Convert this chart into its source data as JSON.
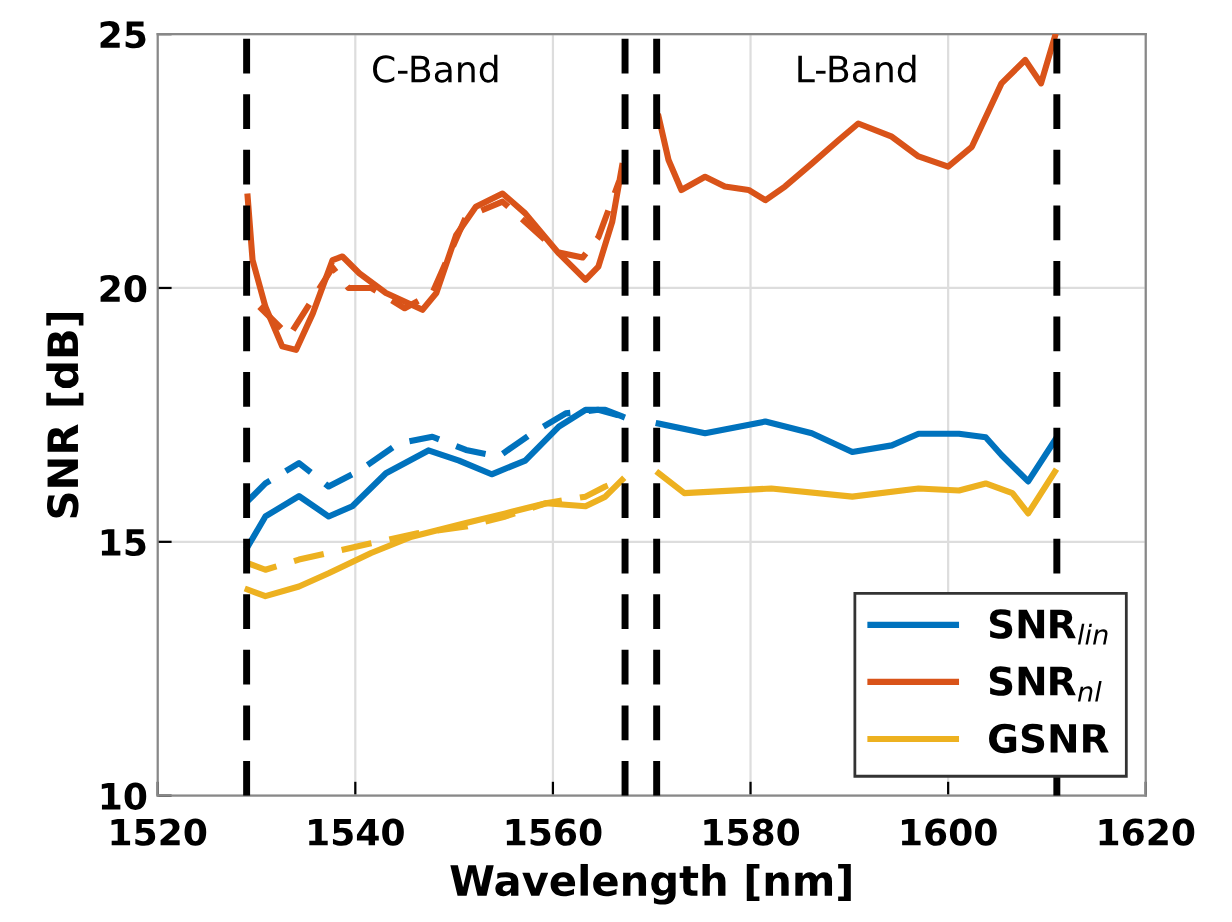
{
  "chart_data": {
    "type": "line",
    "xlabel": "Wavelength [nm]",
    "ylabel": "SNR [dB]",
    "xlim": [
      1520,
      1620
    ],
    "xticks": [
      1520,
      1540,
      1560,
      1580,
      1600,
      1620
    ],
    "ylim": [
      10,
      25
    ],
    "yticks": [
      10,
      15,
      20,
      25
    ],
    "grid": true,
    "legend": "bottom right",
    "series": [
      {
        "name": "SNR$_{lin}$",
        "color": "#0072bd",
        "line_style": "solid",
        "x": [
          1529.1,
          1530.9,
          1534.3,
          1537.3,
          1539.7,
          1543.1,
          1547.4,
          1550.5,
          1553.8,
          1557.2,
          1560.6,
          1563.3,
          1565.3,
          1567.0,
          null,
          1570.7,
          1575.4,
          1581.5,
          1586.2,
          1590.3,
          1594.3,
          1597.0,
          1601.1,
          1603.8,
          1605.4,
          1608.1,
          1610.8
        ],
        "values": [
          14.9,
          15.5,
          15.9,
          15.5,
          15.7,
          16.35,
          16.8,
          16.6,
          16.33,
          16.6,
          17.27,
          17.6,
          17.6,
          17.47,
          null,
          17.33,
          17.14,
          17.37,
          17.14,
          16.77,
          16.9,
          17.13,
          17.13,
          17.06,
          16.71,
          16.19,
          17.0
        ]
      },
      {
        "name": "SNR$_{nl}$",
        "color": "#d95319",
        "line_style": "solid",
        "x": [
          1529.1,
          1529.6,
          1530.9,
          1532.6,
          1534.0,
          1535.7,
          1537.7,
          1538.7,
          1540.4,
          1543.1,
          1546.8,
          1548.2,
          1550.2,
          1552.2,
          1554.9,
          1557.2,
          1560.6,
          1563.3,
          1564.6,
          1566.0,
          1567.0,
          null,
          1570.7,
          1571.7,
          1573.0,
          1575.4,
          1577.4,
          1579.8,
          1581.5,
          1583.5,
          1586.2,
          1588.9,
          1590.9,
          1594.3,
          1597.0,
          1600.0,
          1602.4,
          1605.4,
          1607.8,
          1609.4,
          1610.8
        ],
        "values": [
          21.8,
          20.55,
          19.63,
          18.85,
          18.78,
          19.5,
          20.55,
          20.62,
          20.29,
          19.9,
          19.57,
          19.9,
          21.04,
          21.6,
          21.86,
          21.47,
          20.68,
          20.16,
          20.42,
          21.3,
          22.4,
          null,
          23.37,
          22.52,
          21.93,
          22.19,
          22.0,
          21.93,
          21.73,
          22.0,
          22.45,
          22.91,
          23.24,
          22.98,
          22.59,
          22.39,
          22.78,
          24.03,
          24.49,
          24.03,
          24.95
        ]
      },
      {
        "name": "GSNR",
        "color": "#edb120",
        "line_style": "solid",
        "x": [
          1529.1,
          1530.9,
          1534.3,
          1537.3,
          1541.6,
          1545.7,
          1551.2,
          1555.2,
          1559.3,
          1563.3,
          1565.3,
          1567.0,
          null,
          1570.7,
          1573.3,
          1582.1,
          1590.3,
          1597.0,
          1601.1,
          1603.8,
          1606.5,
          1608.1,
          1610.8
        ],
        "values": [
          14.06,
          13.93,
          14.12,
          14.38,
          14.78,
          15.1,
          15.37,
          15.56,
          15.76,
          15.7,
          15.89,
          16.22,
          null,
          16.35,
          15.96,
          16.05,
          15.89,
          16.05,
          16.01,
          16.15,
          15.96,
          15.56,
          16.38
        ]
      },
      {
        "color": "#0072bd",
        "line_style": "dashed",
        "x": [
          1529.1,
          1530.9,
          1534.3,
          1537.3,
          1540.4,
          1544.4,
          1547.8,
          1551.2,
          1554.5,
          1557.9,
          1561.3,
          1564.6,
          1567.0
        ],
        "values": [
          15.8,
          16.15,
          16.55,
          16.09,
          16.4,
          16.94,
          17.07,
          16.81,
          16.68,
          17.14,
          17.53,
          17.6,
          17.47
        ]
      },
      {
        "color": "#d95319",
        "line_style": "dashed",
        "x": [
          1530.3,
          1533.3,
          1537.7,
          1539.3,
          1541.6,
          1545.0,
          1547.8,
          1551.2,
          1554.9,
          1557.2,
          1560.6,
          1563.0,
          1564.6,
          1566.7
        ],
        "values": [
          19.63,
          19.05,
          20.4,
          20.0,
          20.0,
          19.6,
          19.9,
          21.4,
          21.7,
          21.3,
          20.7,
          20.6,
          21.0,
          22.1
        ]
      },
      {
        "color": "#edb120",
        "line_style": "dashed",
        "x": [
          1529.1,
          1530.9,
          1534.3,
          1537.3,
          1541.6,
          1546.3,
          1551.2,
          1555.2,
          1559.3,
          1563.3,
          1565.3,
          1567.0
        ],
        "values": [
          14.58,
          14.45,
          14.65,
          14.78,
          14.97,
          15.17,
          15.3,
          15.5,
          15.76,
          15.89,
          16.09,
          16.22
        ]
      }
    ],
    "ref_lines": [
      {
        "axis": "x",
        "value": 1529,
        "color": "#000000",
        "line_style": "dashed"
      },
      {
        "axis": "x",
        "value": 1567.3,
        "color": "#000000",
        "line_style": "dashed"
      },
      {
        "axis": "x",
        "value": 1570.5,
        "color": "#000000",
        "line_style": "dashed"
      },
      {
        "axis": "x",
        "value": 1611,
        "color": "#000000",
        "line_style": "dashed"
      }
    ],
    "annotations": [
      "C-Band",
      "L-Band"
    ]
  }
}
